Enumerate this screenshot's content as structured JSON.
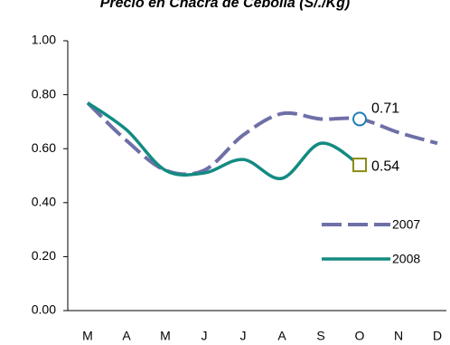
{
  "chart_data": {
    "type": "line",
    "title": "Precio en Chacra de Cebolla (S/./Kg)",
    "categories": [
      "M",
      "A",
      "M",
      "J",
      "J",
      "A",
      "S",
      "O",
      "N",
      "D"
    ],
    "series": [
      {
        "name": "2007",
        "color": "#6f6fa8",
        "dash": true,
        "marker": "circle",
        "marker_color": "#1f7fb3",
        "values": [
          0.77,
          0.63,
          0.52,
          0.52,
          0.65,
          0.73,
          0.71,
          0.71,
          0.66,
          0.62
        ],
        "value_labels": [
          null,
          null,
          null,
          null,
          null,
          null,
          null,
          "0.71",
          null,
          null
        ]
      },
      {
        "name": "2008",
        "color": "#138b81",
        "dash": false,
        "marker": "square",
        "marker_color": "#8c8c14",
        "values": [
          0.77,
          0.67,
          0.52,
          0.51,
          0.56,
          0.49,
          0.62,
          0.54,
          null,
          null
        ],
        "value_labels": [
          null,
          null,
          null,
          null,
          null,
          null,
          null,
          "0.54",
          null,
          null
        ]
      }
    ],
    "ylim": [
      0,
      1
    ],
    "yticks": [
      {
        "value": 0,
        "label": "0.00"
      },
      {
        "value": 0.2,
        "label": "0.20"
      },
      {
        "value": 0.4,
        "label": "0.40"
      },
      {
        "value": 0.6,
        "label": "0.60"
      },
      {
        "value": 0.8,
        "label": "0.80"
      },
      {
        "value": 1,
        "label": "1.00"
      }
    ],
    "grid": false,
    "legend": "lower right"
  }
}
